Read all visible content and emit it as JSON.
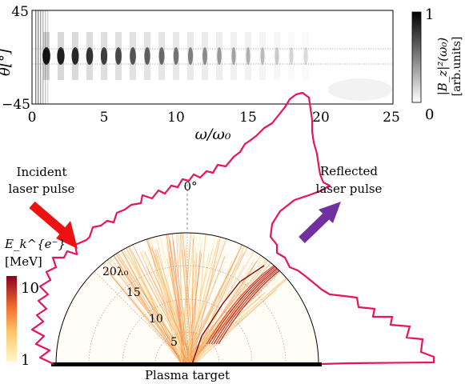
{
  "spectrum": {
    "y_axis_label": "θ[°]",
    "y_ticks": [
      "45",
      "−45"
    ],
    "x_ticks": [
      "0",
      "5",
      "10",
      "15",
      "20",
      "25"
    ],
    "x_axis_label": "ω/ω₀",
    "colorbar_ticks": [
      "1",
      "0"
    ],
    "colorbar_label_main": "|B_z|²(ω₀)",
    "colorbar_label_units": "[arb.units]"
  },
  "annotations": {
    "incident_line1": "Incident",
    "incident_line2": "laser pulse",
    "reflected_line1": "Reflected",
    "reflected_line2": "laser pulse",
    "zero_angle": "0°",
    "plasma_target": "Plasma target"
  },
  "energy_colorbar": {
    "label_symbol": "E_k^{e⁻}",
    "label_units": "[MeV]",
    "ticks": [
      "10",
      "1"
    ]
  },
  "polar": {
    "radial_labels": [
      "20λ₀",
      "15",
      "10",
      "5"
    ]
  },
  "colors": {
    "incident_arrow": "#ee1111",
    "reflected_arrow": "#7030a0",
    "envelope": "#e8145a"
  }
}
